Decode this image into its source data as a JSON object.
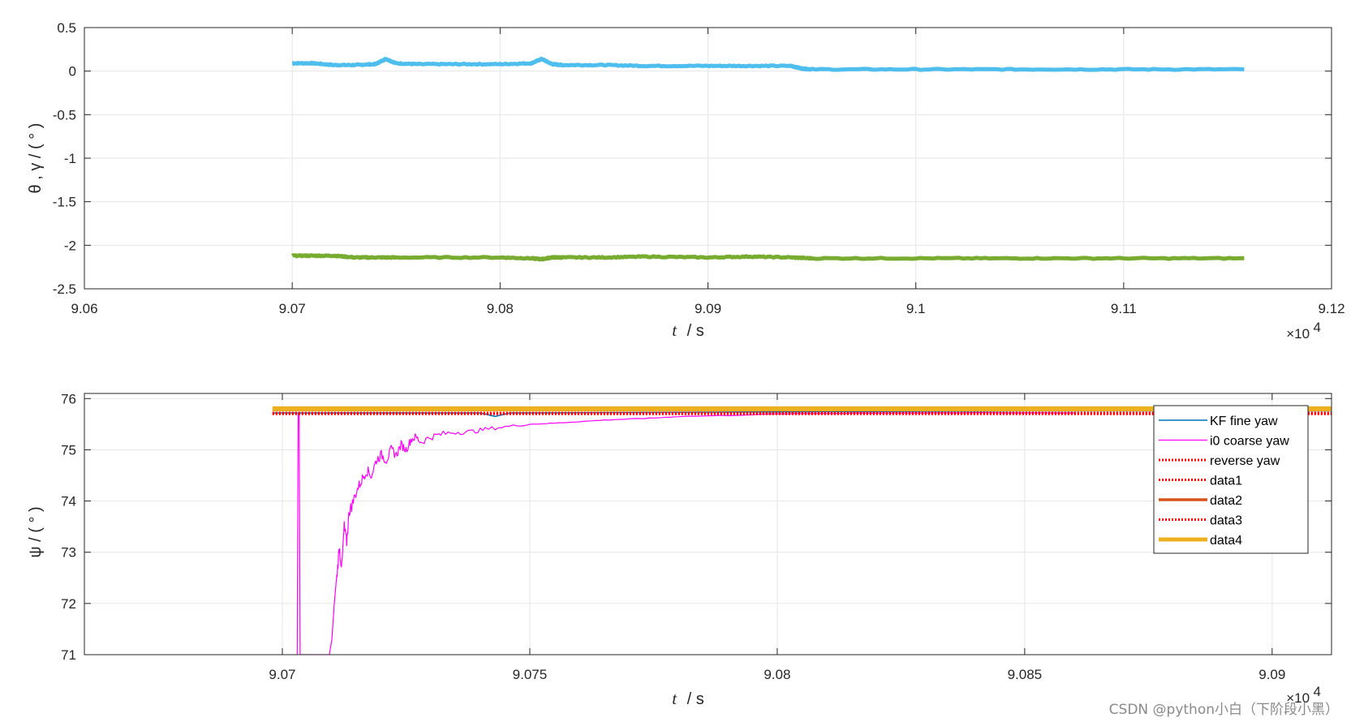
{
  "watermark": "CSDN @python小白（下阶段小黑）",
  "colors": {
    "theta": "#4DBEEE",
    "gamma": "#77AC30",
    "kf_fine_yaw": "#0072BD",
    "i0_coarse_yaw": "#FF00FF",
    "reverse_yaw": "#FF0000",
    "data1": "#FF0000",
    "data2": "#D95319",
    "data3": "#FF0000",
    "data4": "#EDB120",
    "grid": "#e6e6e6",
    "axis": "#262626"
  },
  "chart_data": [
    {
      "type": "line",
      "title": "",
      "xlabel_var": "t",
      "xlabel_unit": "/ s",
      "ylabel": "θ , γ / ( ° )",
      "xlim": [
        90600,
        91200
      ],
      "ylim": [
        -2.5,
        0.5
      ],
      "x_ticks": [
        90600,
        90700,
        90800,
        90900,
        91000,
        91100,
        91200
      ],
      "x_tick_labels": [
        "9.06",
        "9.07",
        "9.08",
        "9.09",
        "9.1",
        "9.11",
        "9.12"
      ],
      "y_ticks": [
        0.5,
        0,
        -0.5,
        -1,
        -1.5,
        -2,
        -2.5
      ],
      "y_tick_labels": [
        "0.5",
        "0",
        "-0.5",
        "-1",
        "-1.5",
        "-2",
        "-2.5"
      ],
      "x_exponent_base": "×10",
      "x_exponent_power": "4",
      "grid": true,
      "series": [
        {
          "x": [
            90700,
            90710,
            90720,
            90730,
            90740,
            90745,
            90750,
            90760,
            90780,
            90800,
            90815,
            90820,
            90825,
            90830,
            90850,
            90870,
            90900,
            90920,
            90940,
            90945,
            90950,
            91000,
            91050,
            91100,
            91158
          ],
          "y": [
            0.09,
            0.09,
            0.07,
            0.07,
            0.08,
            0.14,
            0.09,
            0.08,
            0.08,
            0.08,
            0.09,
            0.14,
            0.08,
            0.07,
            0.07,
            0.06,
            0.06,
            0.06,
            0.06,
            0.03,
            0.02,
            0.02,
            0.02,
            0.02,
            0.02
          ]
        },
        {
          "x": [
            90700,
            90710,
            90720,
            90730,
            90740,
            90750,
            90800,
            90815,
            90820,
            90825,
            90830,
            90850,
            90870,
            90900,
            90920,
            90940,
            90950,
            91000,
            91050,
            91100,
            91158
          ],
          "y": [
            -2.12,
            -2.12,
            -2.12,
            -2.14,
            -2.14,
            -2.14,
            -2.14,
            -2.15,
            -2.16,
            -2.14,
            -2.14,
            -2.14,
            -2.13,
            -2.14,
            -2.13,
            -2.14,
            -2.15,
            -2.15,
            -2.15,
            -2.15,
            -2.15
          ]
        }
      ]
    },
    {
      "type": "line",
      "title": "",
      "xlabel_var": "t",
      "xlabel_unit": "/ s",
      "ylabel": "ψ / ( ° )",
      "xlim": [
        90660,
        90912
      ],
      "ylim": [
        71,
        76.1
      ],
      "x_ticks": [
        90700,
        90750,
        90800,
        90850,
        90900
      ],
      "x_tick_labels": [
        "9.07",
        "9.075",
        "9.08",
        "9.085",
        "9.09"
      ],
      "y_ticks": [
        76,
        75,
        74,
        73,
        72,
        71
      ],
      "y_tick_labels": [
        "76",
        "75",
        "74",
        "73",
        "72",
        "71"
      ],
      "x_exponent_base": "×10",
      "x_exponent_power": "4",
      "grid": true,
      "legend_position": "top-right",
      "series": [
        {
          "name": "KF fine yaw",
          "x": [
            90698,
            90740,
            90743,
            90746,
            90800,
            90850,
            90912
          ],
          "y": [
            75.72,
            75.72,
            75.65,
            75.72,
            75.74,
            75.76,
            75.76
          ]
        },
        {
          "name": "i0 coarse yaw",
          "x": [
            90703.0,
            90703.2,
            90703.4,
            90703.6,
            90703.8,
            90704.0,
            90704.2,
            90709.5,
            90710.0,
            90710.5,
            90711.0,
            90711.5,
            90712.0,
            90712.5,
            90713.0,
            90713.5,
            90714.0,
            90715.0,
            90716.0,
            90717.0,
            90718.0,
            90719.0,
            90720.0,
            90721.0,
            90722.0,
            90723.0,
            90724.0,
            90725.0,
            90726.0,
            90727.0,
            90728.0,
            90730.0,
            90732.0,
            90735.0,
            90738.0,
            90741.0,
            90745.0,
            90750.0,
            90755.0,
            90760.0,
            90765.0,
            90770.0,
            90775.0,
            90780.0,
            90790.0,
            90800.0,
            90810.0,
            90820.0,
            90840.0,
            90860.0
          ],
          "y": [
            71.0,
            75.7,
            75.7,
            71.0,
            71.0,
            71.0,
            71.0,
            71.0,
            71.3,
            72.0,
            72.5,
            73.1,
            72.7,
            73.5,
            73.2,
            73.8,
            73.9,
            74.2,
            74.4,
            74.6,
            74.5,
            74.8,
            74.9,
            74.8,
            75.0,
            74.9,
            75.1,
            75.0,
            75.2,
            75.25,
            75.15,
            75.25,
            75.3,
            75.35,
            75.35,
            75.4,
            75.45,
            75.5,
            75.52,
            75.55,
            75.58,
            75.6,
            75.62,
            75.65,
            75.67,
            75.7,
            75.71,
            75.72,
            75.72,
            75.72
          ]
        },
        {
          "name": "reverse yaw",
          "x": [
            90698,
            90912
          ],
          "y": [
            75.7,
            75.7
          ]
        },
        {
          "name": "data1",
          "x": [
            90698,
            90912
          ],
          "y": [
            75.71,
            75.71
          ]
        },
        {
          "name": "data2",
          "x": [
            90698,
            90912
          ],
          "y": [
            75.78,
            75.78
          ]
        },
        {
          "name": "data3",
          "x": [
            90698,
            90912
          ],
          "y": [
            75.72,
            75.72
          ]
        },
        {
          "name": "data4",
          "x": [
            90698,
            90912
          ],
          "y": [
            75.8,
            75.8
          ]
        }
      ]
    }
  ]
}
